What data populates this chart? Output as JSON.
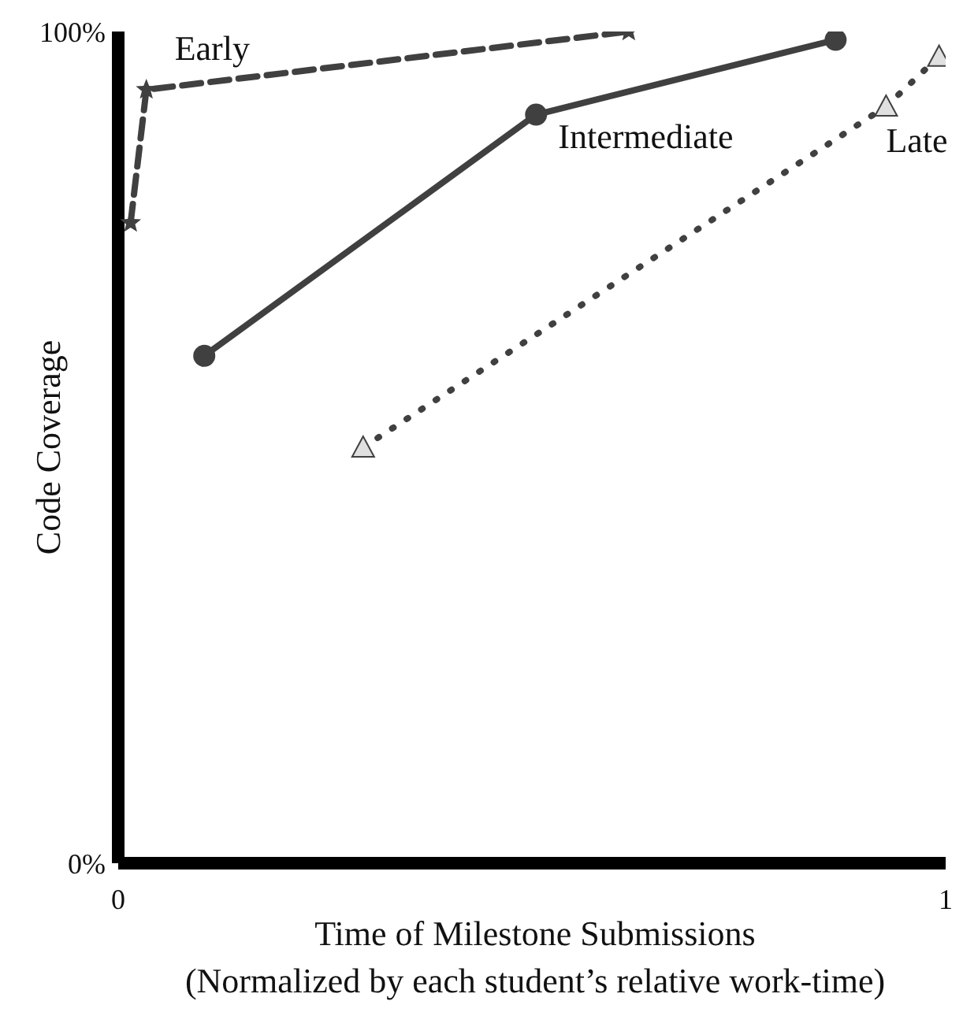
{
  "chart_data": {
    "type": "line",
    "xlabel": "Time of Milestone Submissions\n(Normalized by each student’s relative work-time)",
    "ylabel": "Code Coverage",
    "xlim": [
      0,
      1
    ],
    "xticks": [
      0,
      1
    ],
    "ylim": [
      0,
      100
    ],
    "yticks": [
      {
        "value": 0,
        "label": "0%"
      },
      {
        "value": 100,
        "label": "100%"
      }
    ],
    "grid": false,
    "series": [
      {
        "name": "Early",
        "color": "#404040",
        "marker": "star",
        "line_style": "dashed",
        "x": [
          0.015,
          0.034,
          0.617
        ],
        "values": [
          77,
          93,
          100
        ]
      },
      {
        "name": "Intermediate",
        "color": "#404040",
        "marker": "circle",
        "line_style": "solid",
        "x": [
          0.104,
          0.505,
          0.867
        ],
        "values": [
          61,
          90,
          99
        ]
      },
      {
        "name": "Late",
        "color": "#404040",
        "marker": "triangle",
        "line_style": "dotted",
        "x": [
          0.296,
          0.928,
          0.992
        ],
        "values": [
          50,
          91,
          97
        ]
      }
    ]
  }
}
